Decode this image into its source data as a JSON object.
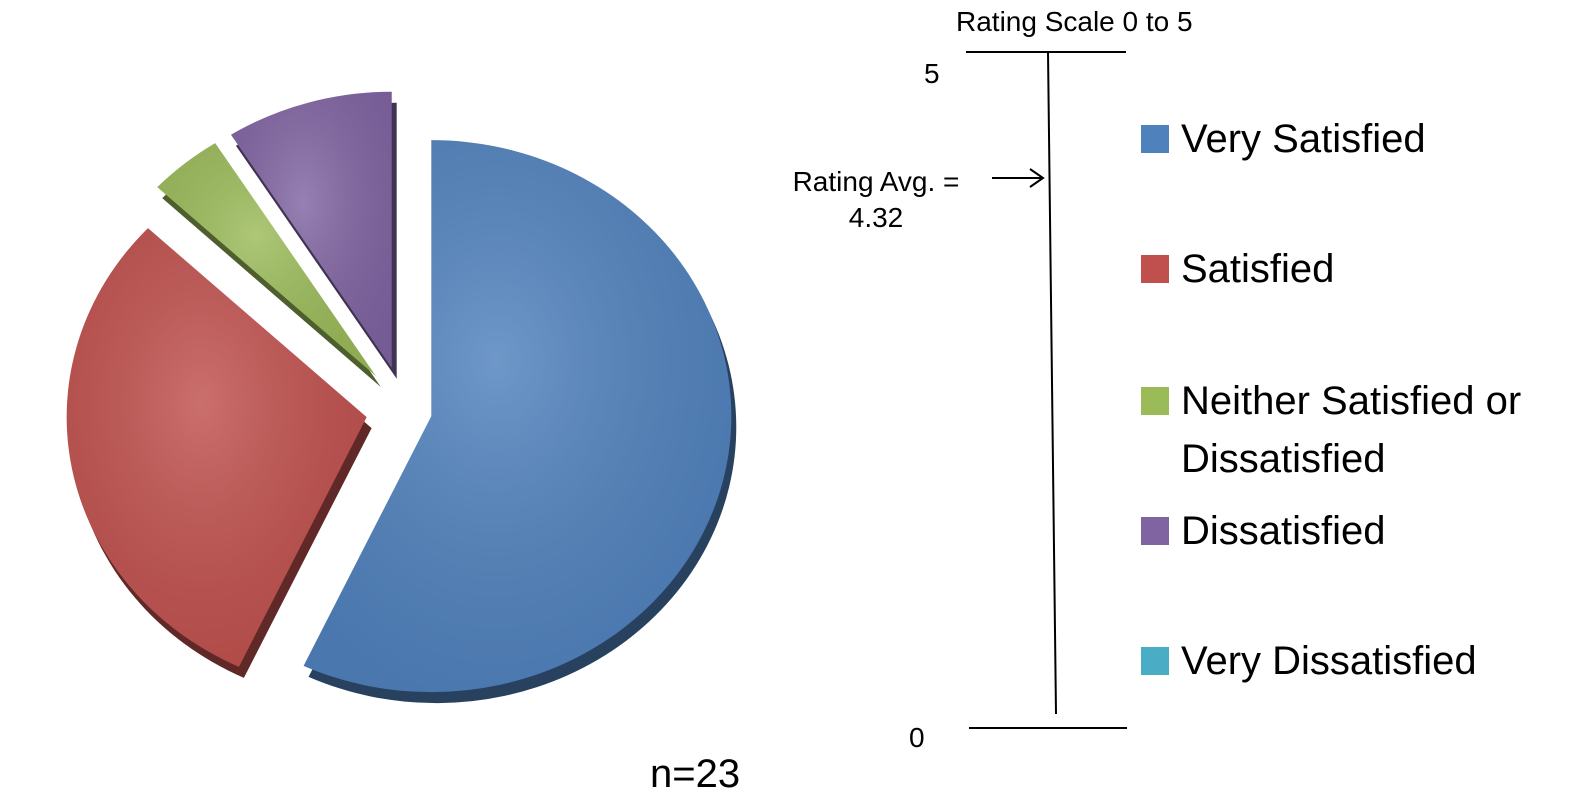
{
  "chart_data": {
    "type": "pie",
    "categories": [
      "Very Satisfied",
      "Satisfied",
      "Neither Satisfied or Dissatisfied",
      "Dissatisfied",
      "Very Dissatisfied"
    ],
    "values": [
      57,
      30,
      4,
      9,
      0
    ],
    "value_units": "percent of respondents (estimated)",
    "colors": [
      "#4F81BD",
      "#C0504D",
      "#9BBB59",
      "#8064A2",
      "#4BACC6"
    ],
    "exploded": true,
    "legend_position": "right",
    "sample_size_label": "n=23",
    "rating_scale": {
      "title": "Rating Scale 0 to 5",
      "min": 0,
      "max": 5,
      "min_label": "0",
      "max_label": "5",
      "average_label_line1": "Rating Avg. =",
      "average_label_line2": "4.32",
      "average": 4.32
    }
  }
}
